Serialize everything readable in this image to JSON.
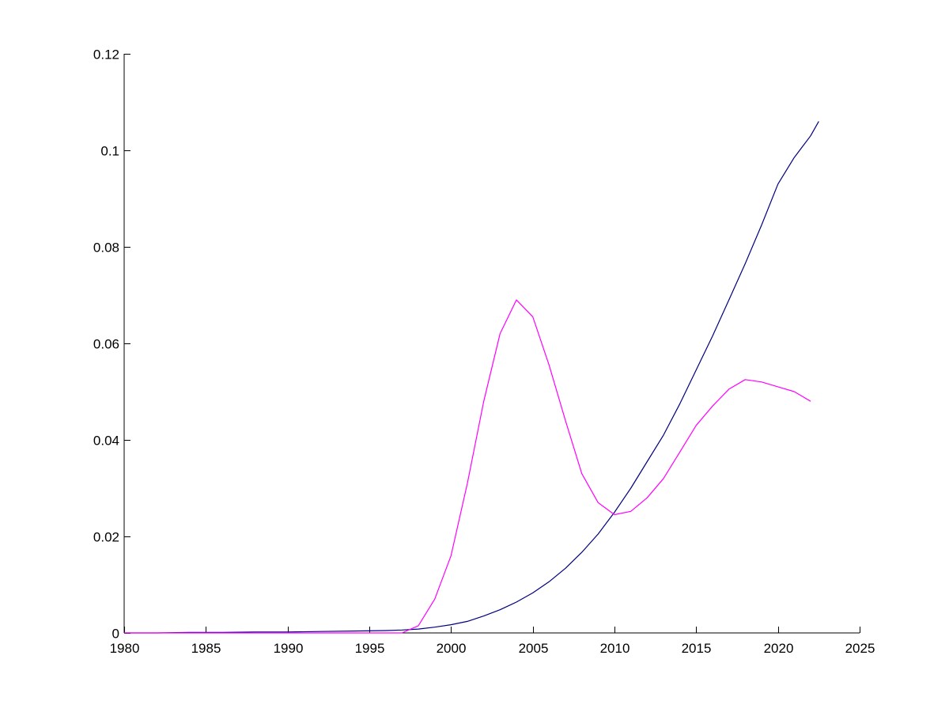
{
  "chart_data": {
    "type": "line",
    "title": "",
    "xlabel": "",
    "ylabel": "",
    "xlim": [
      1980,
      2025
    ],
    "ylim": [
      0,
      0.12
    ],
    "x_ticks": [
      "1980",
      "1985",
      "1990",
      "1995",
      "2000",
      "2005",
      "2010",
      "2015",
      "2020",
      "2025"
    ],
    "y_ticks": [
      "0",
      "0.02",
      "0.04",
      "0.06",
      "0.08",
      "0.1",
      "0.12"
    ],
    "grid": false,
    "legend": "none",
    "series": [
      {
        "color": "#00007f",
        "points": [
          [
            1980,
            0
          ],
          [
            1982,
            0
          ],
          [
            1984,
            0.0001
          ],
          [
            1986,
            0.0001
          ],
          [
            1988,
            0.0002
          ],
          [
            1990,
            0.0002
          ],
          [
            1992,
            0.0003
          ],
          [
            1994,
            0.0004
          ],
          [
            1996,
            0.0005
          ],
          [
            1997,
            0.0006
          ],
          [
            1998,
            0.0008
          ],
          [
            1999,
            0.0012
          ],
          [
            2000,
            0.0017
          ],
          [
            2001,
            0.0024
          ],
          [
            2002,
            0.0035
          ],
          [
            2003,
            0.0048
          ],
          [
            2004,
            0.0064
          ],
          [
            2005,
            0.0083
          ],
          [
            2006,
            0.0106
          ],
          [
            2007,
            0.0134
          ],
          [
            2008,
            0.0167
          ],
          [
            2009,
            0.0205
          ],
          [
            2010,
            0.025
          ],
          [
            2011,
            0.03
          ],
          [
            2012,
            0.0355
          ],
          [
            2013,
            0.041
          ],
          [
            2014,
            0.0475
          ],
          [
            2015,
            0.0545
          ],
          [
            2016,
            0.0615
          ],
          [
            2017,
            0.069
          ],
          [
            2018,
            0.0765
          ],
          [
            2019,
            0.0845
          ],
          [
            2020,
            0.093
          ],
          [
            2021,
            0.0985
          ],
          [
            2022,
            0.103
          ],
          [
            2022.5,
            0.106
          ]
        ]
      },
      {
        "color": "#ff00ff",
        "points": [
          [
            1980,
            0
          ],
          [
            1985,
            0
          ],
          [
            1990,
            0
          ],
          [
            1995,
            0
          ],
          [
            1997,
            0
          ],
          [
            1998,
            0.0015
          ],
          [
            1999,
            0.007
          ],
          [
            2000,
            0.016
          ],
          [
            2001,
            0.031
          ],
          [
            2002,
            0.048
          ],
          [
            2003,
            0.062
          ],
          [
            2004,
            0.069
          ],
          [
            2005,
            0.0655
          ],
          [
            2006,
            0.0555
          ],
          [
            2007,
            0.044
          ],
          [
            2008,
            0.033
          ],
          [
            2009,
            0.027
          ],
          [
            2010,
            0.0245
          ],
          [
            2011,
            0.0252
          ],
          [
            2012,
            0.028
          ],
          [
            2013,
            0.032
          ],
          [
            2014,
            0.0375
          ],
          [
            2015,
            0.043
          ],
          [
            2016,
            0.047
          ],
          [
            2017,
            0.0505
          ],
          [
            2018,
            0.0525
          ],
          [
            2019,
            0.052
          ],
          [
            2020,
            0.051
          ],
          [
            2021,
            0.05
          ],
          [
            2022,
            0.048
          ]
        ]
      }
    ]
  }
}
